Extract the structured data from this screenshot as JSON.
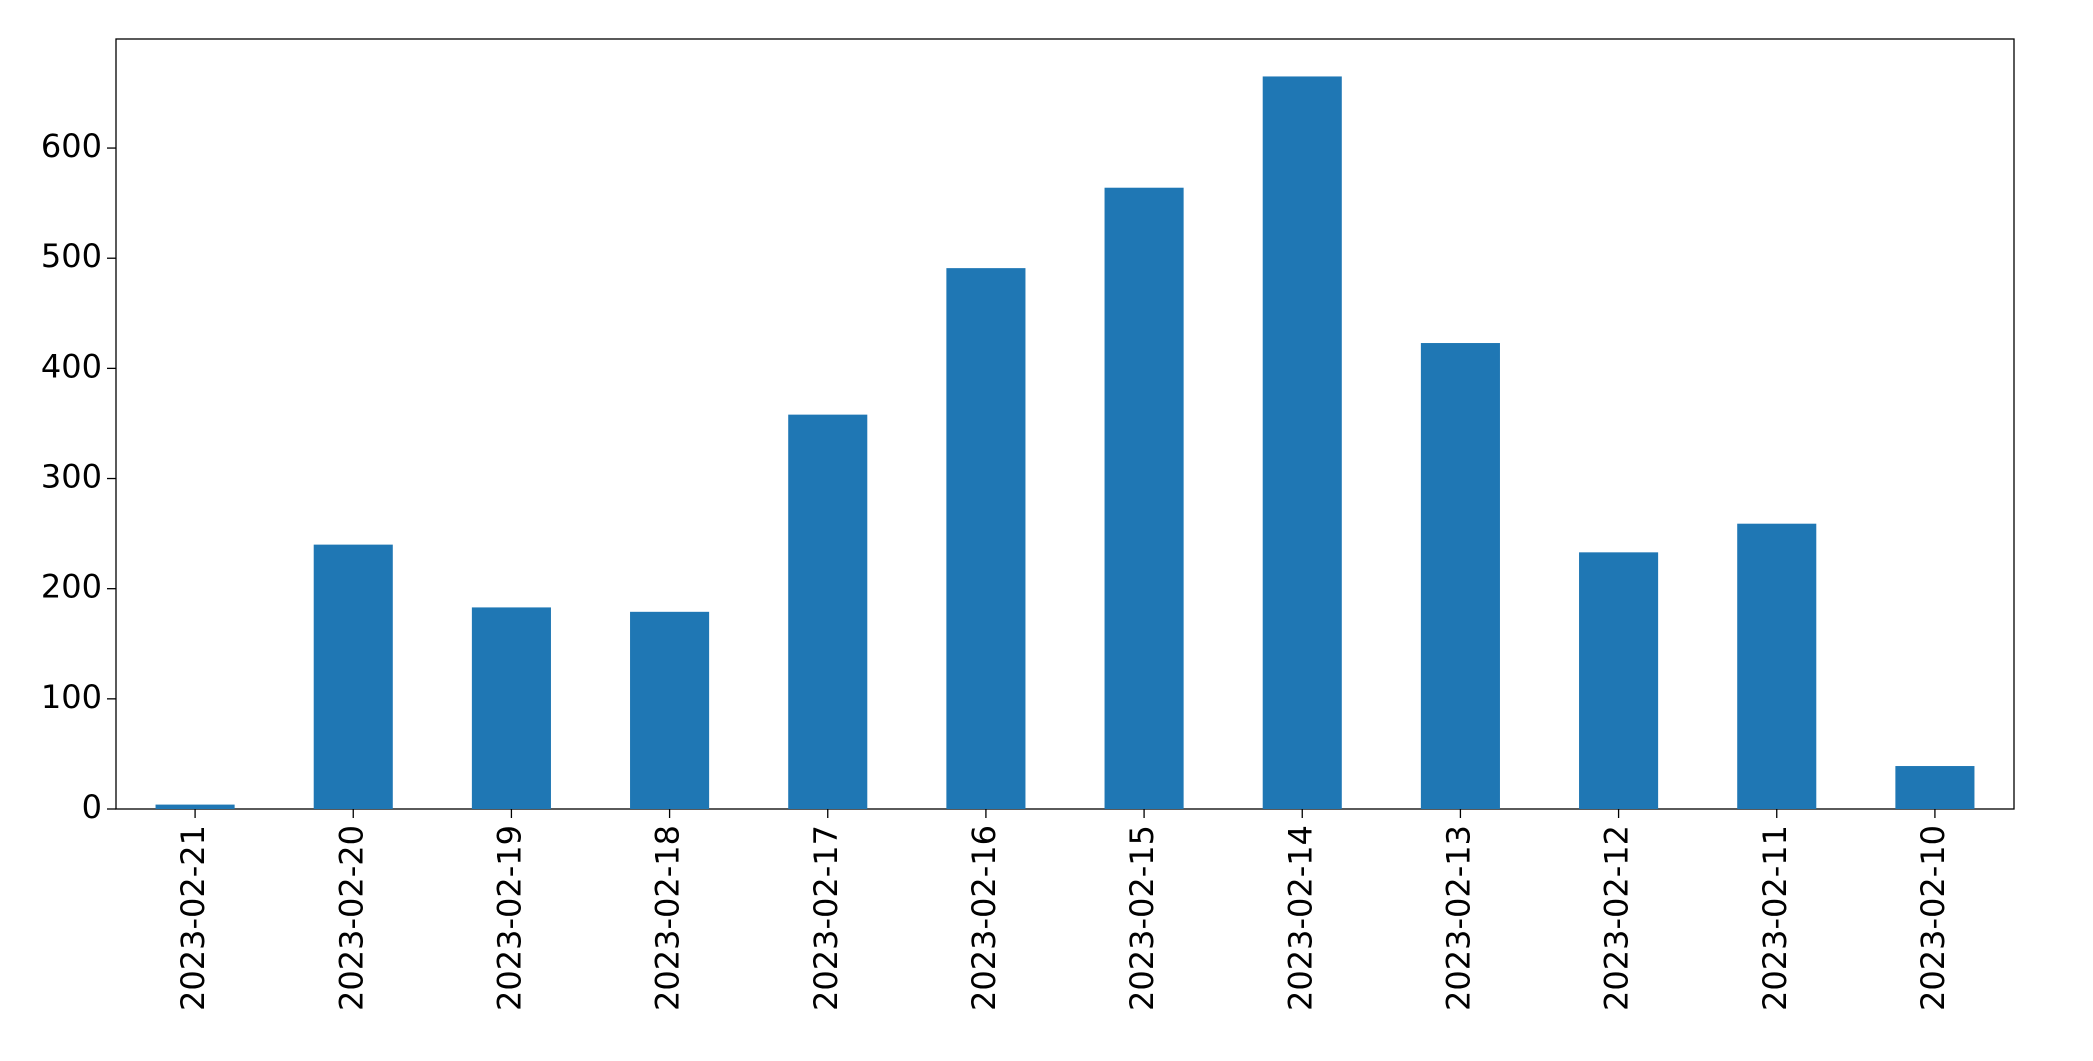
{
  "chart_data": {
    "type": "bar",
    "categories": [
      "2023-02-21",
      "2023-02-20",
      "2023-02-19",
      "2023-02-18",
      "2023-02-17",
      "2023-02-16",
      "2023-02-15",
      "2023-02-14",
      "2023-02-13",
      "2023-02-12",
      "2023-02-11",
      "2023-02-10"
    ],
    "values": [
      4,
      240,
      183,
      179,
      358,
      491,
      564,
      665,
      423,
      233,
      259,
      39
    ],
    "color": "#1f77b4",
    "ylim": [
      0,
      699
    ],
    "yticks": [
      0,
      100,
      200,
      300,
      400,
      500,
      600
    ],
    "grid": false
  }
}
